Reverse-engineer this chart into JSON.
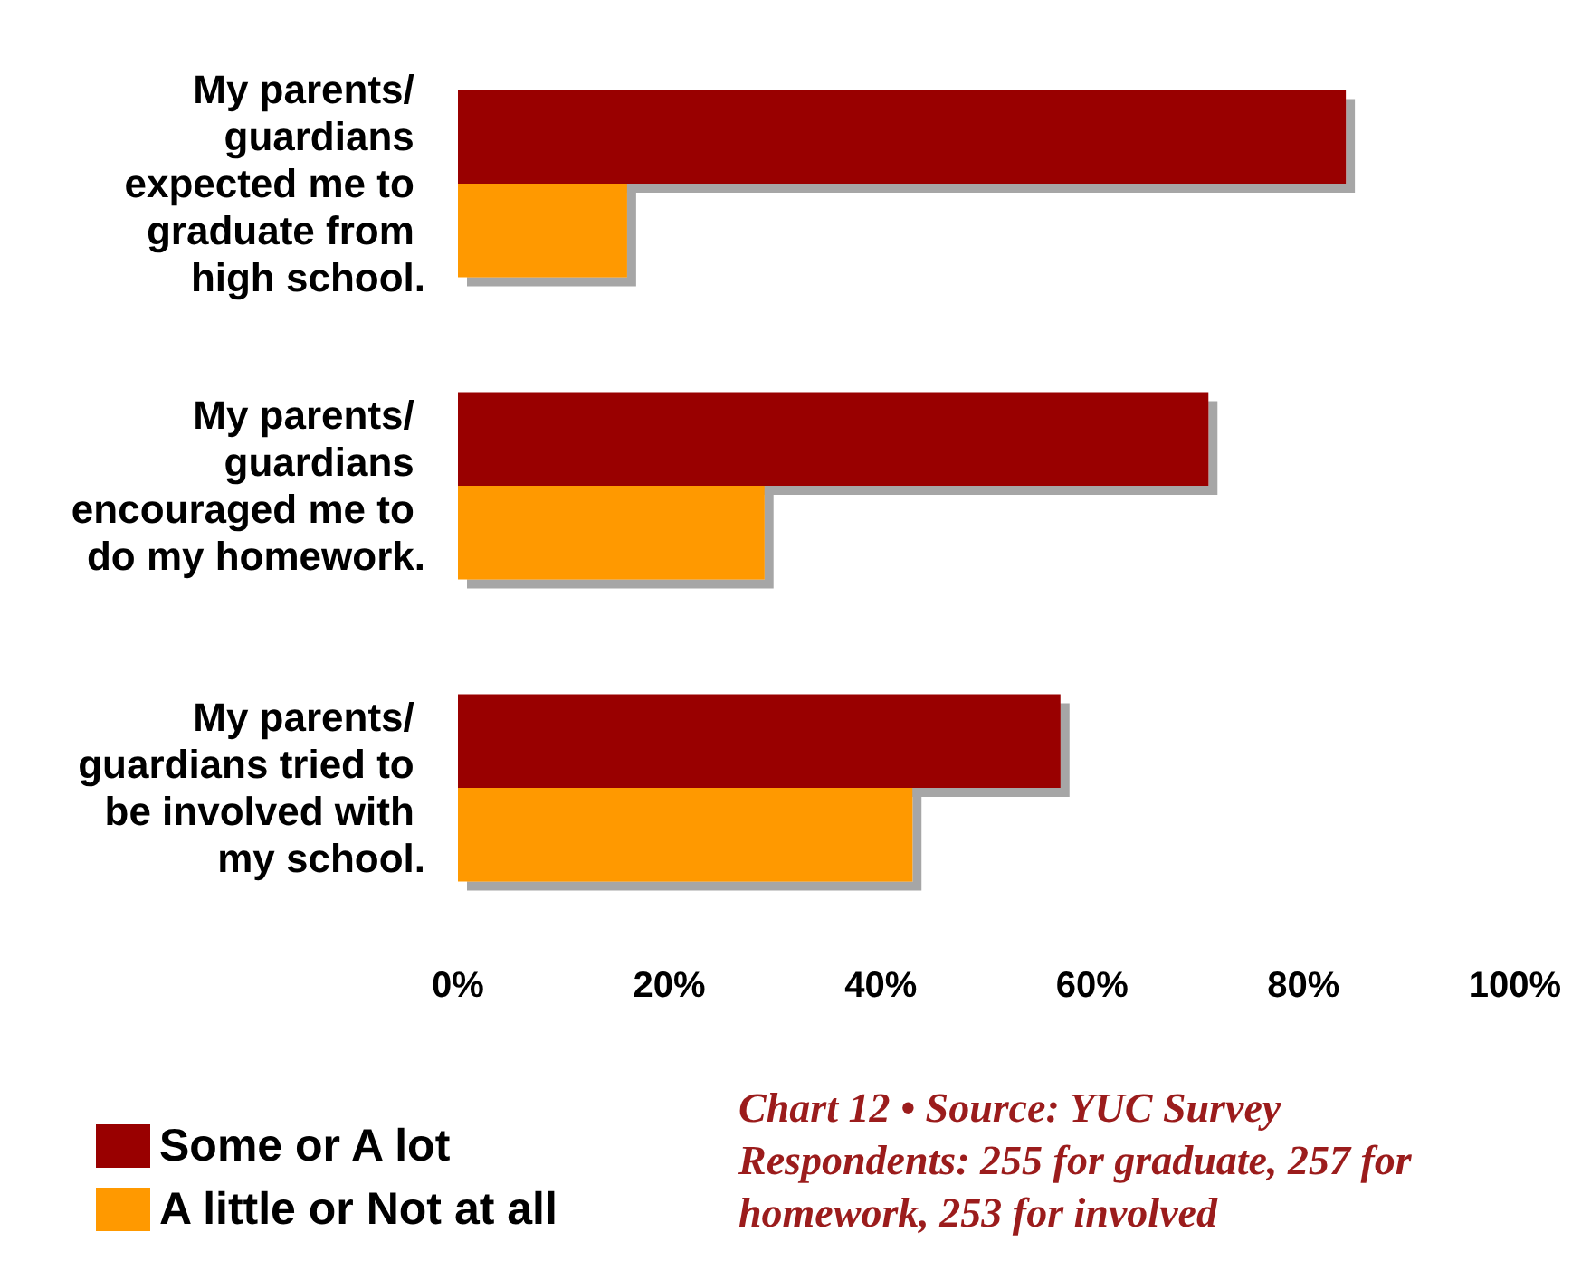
{
  "chart_data": {
    "type": "bar",
    "orientation": "horizontal",
    "categories": [
      "My parents/ guardians expected me to graduate from high school.",
      "My parents/ guardians encouraged me to do my homework.",
      "My parents/ guardians tried to be involved with my school."
    ],
    "series": [
      {
        "name": "Some or A lot",
        "color": "#990000",
        "values": [
          84,
          71,
          57
        ]
      },
      {
        "name": "A little or Not at all",
        "color": "#ff9900",
        "values": [
          16,
          29,
          43
        ]
      }
    ],
    "xlim": [
      0,
      100
    ],
    "xticks": [
      {
        "value": 0,
        "label": "0%"
      },
      {
        "value": 20,
        "label": "20%"
      },
      {
        "value": 40,
        "label": "40%"
      },
      {
        "value": 60,
        "label": "60%"
      },
      {
        "value": 80,
        "label": "80%"
      },
      {
        "value": 100,
        "label": "100%"
      }
    ],
    "grid": false,
    "legend": "bottom left",
    "annotations": [
      "Chart 12 • Source: YUC Survey Respondents: 255 for graduate, 257 for homework, 253 for involved"
    ]
  }
}
